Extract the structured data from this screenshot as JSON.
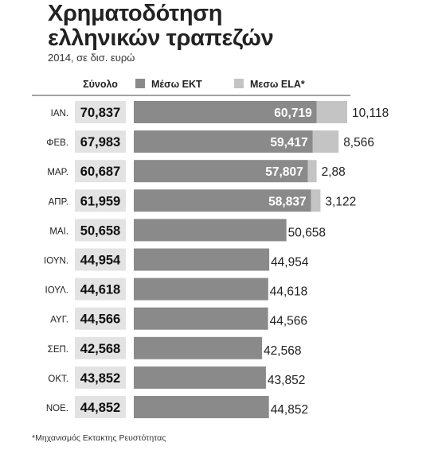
{
  "chart_data": {
    "type": "bar",
    "title_lines": [
      "Χρηματοδότηση",
      "ελληνικών τραπεζών"
    ],
    "subtitle": "2014, σε δισ. ευρώ",
    "total_header": "Σύνολο",
    "footnote": "*Μηχανισμός Εκτακτης Ρευστότητας",
    "colors": {
      "ecb": "#8a8a8a",
      "ela": "#c4c4c4",
      "total_bg": "#e3e3e3"
    },
    "series": [
      {
        "name": "Μέσω ΕΚΤ",
        "values": [
          60.719,
          59.417,
          57.807,
          58.837,
          50.658,
          44.954,
          44.618,
          44.566,
          42.568,
          43.852,
          44.852
        ]
      },
      {
        "name": "Μεσω ELA*",
        "values": [
          10.118,
          8.566,
          2.88,
          3.122,
          null,
          null,
          null,
          null,
          null,
          null,
          null
        ]
      }
    ],
    "rows": [
      {
        "month": "ΙΑΝ.",
        "total": "70,837",
        "ecb": 60.719,
        "ecb_label": "60,719",
        "ela": 10.118,
        "ela_label": "10,118"
      },
      {
        "month": "ΦΕΒ.",
        "total": "67,983",
        "ecb": 59.417,
        "ecb_label": "59,417",
        "ela": 8.566,
        "ela_label": "8,566"
      },
      {
        "month": "ΜΑΡ.",
        "total": "60,687",
        "ecb": 57.807,
        "ecb_label": "57,807",
        "ela": 2.88,
        "ela_label": "2,88"
      },
      {
        "month": "ΑΠΡ.",
        "total": "61,959",
        "ecb": 58.837,
        "ecb_label": "58,837",
        "ela": 3.122,
        "ela_label": "3,122"
      },
      {
        "month": "ΜΑΙ.",
        "total": "50,658",
        "ecb": 50.658,
        "ecb_label": "50,658"
      },
      {
        "month": "ΙΟΥΝ.",
        "total": "44,954",
        "ecb": 44.954,
        "ecb_label": "44,954"
      },
      {
        "month": "ΙΟΥΛ.",
        "total": "44,618",
        "ecb": 44.618,
        "ecb_label": "44,618"
      },
      {
        "month": "ΑΥΓ.",
        "total": "44,566",
        "ecb": 44.566,
        "ecb_label": "44,566"
      },
      {
        "month": "ΣΕΠ.",
        "total": "42,568",
        "ecb": 42.568,
        "ecb_label": "42,568"
      },
      {
        "month": "ΟΚΤ.",
        "total": "43,852",
        "ecb": 43.852,
        "ecb_label": "43,852"
      },
      {
        "month": "ΝΟΕ.",
        "total": "44,852",
        "ecb": 44.852,
        "ecb_label": "44,852"
      }
    ]
  }
}
